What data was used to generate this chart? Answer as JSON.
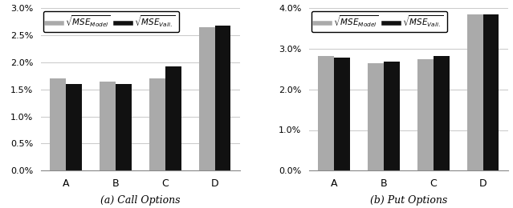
{
  "call_options": {
    "categories": [
      "A",
      "B",
      "C",
      "D"
    ],
    "model_values": [
      0.017,
      0.0165,
      0.017,
      0.0265
    ],
    "vali_values": [
      0.016,
      0.016,
      0.0193,
      0.0268
    ],
    "ylim": [
      0.0,
      0.03
    ],
    "yticks": [
      0.0,
      0.005,
      0.01,
      0.015,
      0.02,
      0.025,
      0.03
    ],
    "subtitle": "(a) Call Options"
  },
  "put_options": {
    "categories": [
      "A",
      "B",
      "C",
      "D"
    ],
    "model_values": [
      0.0282,
      0.0265,
      0.0275,
      0.0385
    ],
    "vali_values": [
      0.0278,
      0.0268,
      0.0283,
      0.0385
    ],
    "ylim": [
      0.0,
      0.04
    ],
    "yticks": [
      0.0,
      0.01,
      0.02,
      0.03,
      0.04
    ],
    "subtitle": "(b) Put Options"
  },
  "bar_width": 0.32,
  "color_model": "#aaaaaa",
  "color_vali": "#111111",
  "legend_label_model": "$\\sqrt{MSE_{Model}}$",
  "legend_label_vali": "$\\sqrt{MSE_{Vali.}}$",
  "background_color": "#ffffff",
  "grid_color": "#cccccc"
}
